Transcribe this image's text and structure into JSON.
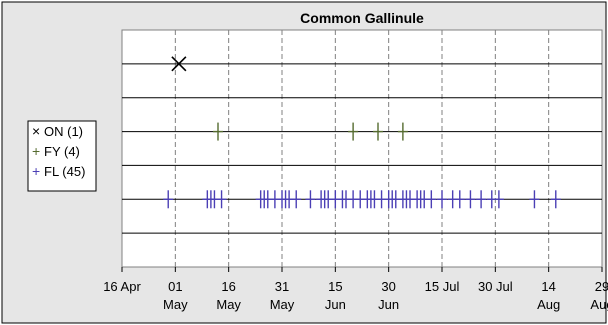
{
  "chart_data": {
    "type": "scatter",
    "title": "Common Gallinule",
    "xlabel": "",
    "ylabel": "",
    "x_ticks": [
      {
        "date": "2023-04-16",
        "label_top": "16 Apr",
        "label_bottom": ""
      },
      {
        "date": "2023-05-01",
        "label_top": "01",
        "label_bottom": "May"
      },
      {
        "date": "2023-05-16",
        "label_top": "16",
        "label_bottom": "May"
      },
      {
        "date": "2023-05-31",
        "label_top": "31",
        "label_bottom": "May"
      },
      {
        "date": "2023-06-15",
        "label_top": "15",
        "label_bottom": "Jun"
      },
      {
        "date": "2023-06-30",
        "label_top": "30",
        "label_bottom": "Jun"
      },
      {
        "date": "2023-07-15",
        "label_top": "15 Jul",
        "label_bottom": ""
      },
      {
        "date": "2023-07-30",
        "label_top": "30 Jul",
        "label_bottom": ""
      },
      {
        "date": "2023-08-14",
        "label_top": "14",
        "label_bottom": "Aug"
      },
      {
        "date": "2023-08-29",
        "label_top": "29",
        "label_bottom": "Aug"
      }
    ],
    "xlim": [
      "2023-04-16",
      "2023-08-29"
    ],
    "grid": true,
    "legend_position": "left",
    "series": [
      {
        "name": "ON (1)",
        "marker": "x",
        "color": "#000000",
        "row": 1,
        "dates": [
          "2023-05-02"
        ]
      },
      {
        "name": "FY (4)",
        "marker": "+",
        "color": "#556b2f",
        "row": 3,
        "dates": [
          "2023-05-13",
          "2023-06-20",
          "2023-06-27",
          "2023-07-04"
        ]
      },
      {
        "name": "FL (45)",
        "marker": "+",
        "color": "#4b3fb5",
        "row": 5,
        "dates": [
          "2023-04-29",
          "2023-05-10",
          "2023-05-12",
          "2023-05-14",
          "2023-05-25",
          "2023-05-27",
          "2023-05-29",
          "2023-05-31",
          "2023-06-02",
          "2023-06-04",
          "2023-06-08",
          "2023-06-11",
          "2023-06-13",
          "2023-06-15",
          "2023-06-17",
          "2023-06-20",
          "2023-06-22",
          "2023-06-24",
          "2023-06-26",
          "2023-06-28",
          "2023-06-30",
          "2023-07-02",
          "2023-07-04",
          "2023-07-06",
          "2023-07-08",
          "2023-07-10",
          "2023-07-12",
          "2023-07-15",
          "2023-07-18",
          "2023-07-20",
          "2023-07-23",
          "2023-07-26",
          "2023-07-29",
          "2023-07-31",
          "2023-08-10",
          "2023-08-16",
          "2023-05-11",
          "2023-05-26",
          "2023-06-01",
          "2023-06-12",
          "2023-06-18",
          "2023-06-25",
          "2023-07-01",
          "2023-07-05",
          "2023-07-09"
        ]
      }
    ]
  }
}
